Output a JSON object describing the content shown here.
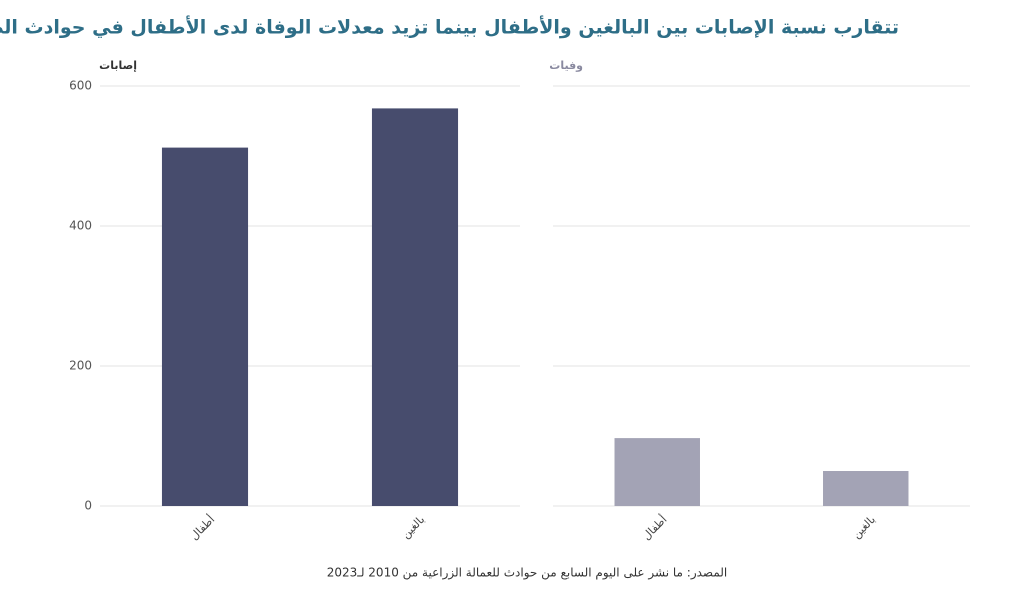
{
  "title": "تتقارب نسبة الإصابات بين البالغين والأطفال بينما تزيد معدلات الوفاة لدى الأطفال في حوادث الطرق",
  "caption": "المصدر: ما نشر على اليوم السابع من حوادث للعمالة الزراعية من 2010 لـ2023",
  "chart_data": [
    {
      "type": "bar",
      "title": "إصابات",
      "categories": [
        "أطفال",
        "بالغين"
      ],
      "values": [
        512,
        568
      ],
      "color": "#474c6d",
      "ylim": [
        0,
        600
      ],
      "yticks": [
        0,
        200,
        400,
        600
      ],
      "grid": true
    },
    {
      "type": "bar",
      "title": "وفيات",
      "categories": [
        "أطفال",
        "بالغين"
      ],
      "values": [
        97,
        50
      ],
      "color": "#a3a3b5",
      "ylim": [
        0,
        600
      ],
      "yticks": [
        0,
        200,
        400,
        600
      ],
      "grid": true
    }
  ]
}
